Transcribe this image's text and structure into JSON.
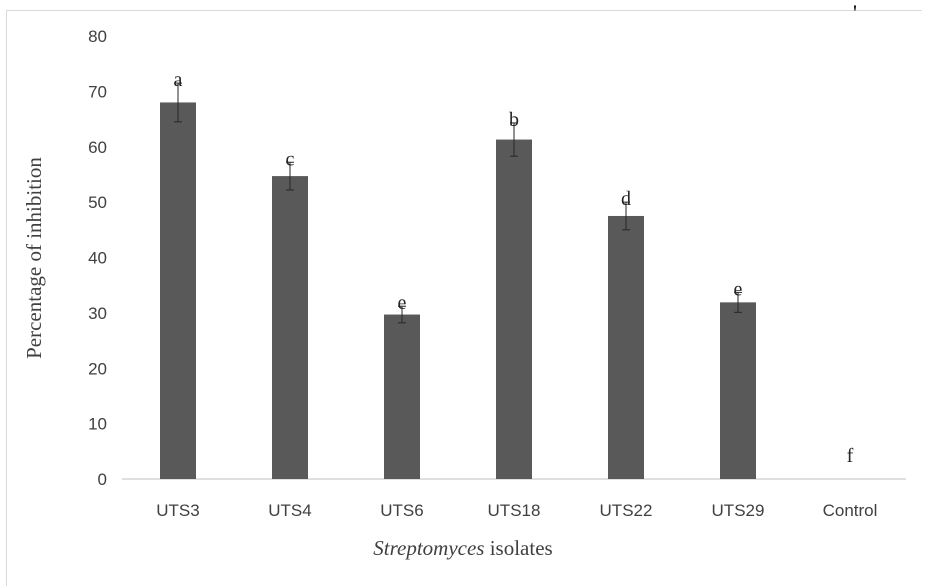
{
  "colors": {
    "bar": "#595959",
    "axis": "#bfbfbf",
    "error_bar": "#262626",
    "text": "#404040"
  },
  "corner_mark": "'",
  "chart_data": {
    "type": "bar",
    "title": "",
    "xlabel_italic": "Streptomyces",
    "xlabel_rest": " isolates",
    "ylabel": "Percentage of inhibition",
    "ylim": [
      0,
      80
    ],
    "yticks": [
      0,
      10,
      20,
      30,
      40,
      50,
      60,
      70,
      80
    ],
    "categories": [
      "UTS3",
      "UTS4",
      "UTS6",
      "UTS18",
      "UTS22",
      "UTS29",
      "Control"
    ],
    "values": [
      68,
      54.7,
      29.7,
      61.3,
      47.5,
      31.9,
      0
    ],
    "errors": [
      3.5,
      2.5,
      1.5,
      3.0,
      2.5,
      1.8,
      0
    ],
    "significance_letters": [
      "a",
      "c",
      "e",
      "b",
      "d",
      "e",
      "f"
    ],
    "grid": false,
    "legend": "none"
  }
}
